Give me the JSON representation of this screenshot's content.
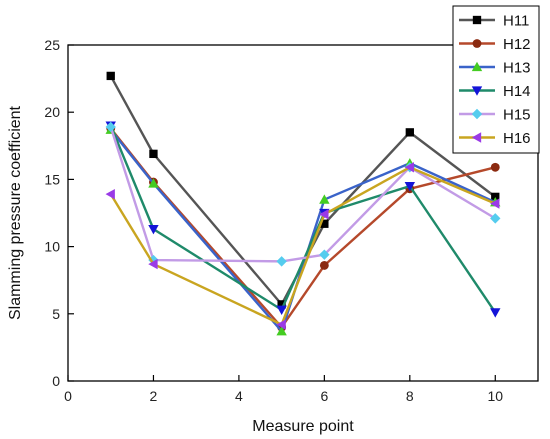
{
  "chart_data": {
    "type": "line",
    "title": "",
    "xlabel": "Measure point",
    "ylabel": "Slamming pressure coefficient",
    "xlim": [
      0,
      11
    ],
    "ylim": [
      0,
      25
    ],
    "x_ticks": [
      0,
      2,
      4,
      6,
      8,
      10
    ],
    "y_ticks": [
      0,
      5,
      10,
      15,
      20,
      25
    ],
    "x": [
      1,
      2,
      5,
      6,
      8,
      10
    ],
    "grid": false,
    "legend_position": "top-right",
    "series": [
      {
        "name": "H11",
        "color": "#555555",
        "marker": "square",
        "values": [
          22.7,
          16.9,
          5.7,
          11.7,
          18.5,
          13.7
        ]
      },
      {
        "name": "H12",
        "color": "#b5492b",
        "marker": "circle",
        "values": [
          18.8,
          14.8,
          4.0,
          8.6,
          14.3,
          15.9
        ]
      },
      {
        "name": "H13",
        "color": "#3a63c9",
        "marker": "triangle-up",
        "values": [
          18.7,
          14.7,
          3.7,
          13.5,
          16.2,
          13.3
        ]
      },
      {
        "name": "H14",
        "color": "#1f8a6a",
        "marker": "triangle-down",
        "values": [
          19.0,
          11.3,
          5.3,
          12.5,
          14.5,
          5.1
        ]
      },
      {
        "name": "H15",
        "color": "#c29be6",
        "marker": "diamond",
        "values": [
          18.9,
          9.0,
          8.9,
          9.4,
          15.9,
          12.1
        ]
      },
      {
        "name": "H16",
        "color": "#c9a520",
        "marker": "triangle-left",
        "values": [
          13.9,
          8.7,
          4.2,
          12.4,
          15.9,
          13.2
        ]
      }
    ],
    "marker_colors": {
      "H11": "#000000",
      "H12": "#8b2a10",
      "H13": "#44cc22",
      "H14": "#1414d8",
      "H15": "#55ccee",
      "H16": "#9a3ae6"
    }
  }
}
